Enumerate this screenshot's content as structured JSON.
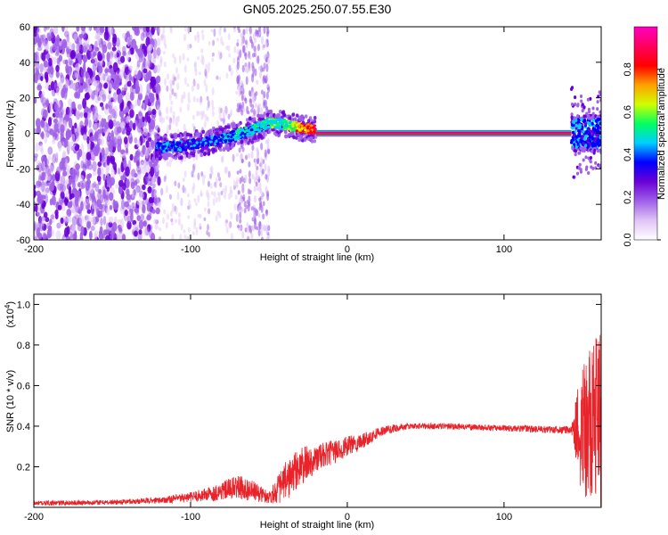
{
  "title": "GN05.2025.250.07.55.E30",
  "chart_data": [
    {
      "type": "heatmap",
      "name": "spectrogram",
      "xlabel": "Height of straight line (km)",
      "ylabel": "Frequency (Hz)",
      "xlim": [
        -200,
        162
      ],
      "ylim": [
        -60,
        60
      ],
      "xticks": [
        -200,
        -100,
        0,
        100
      ],
      "yticks": [
        60,
        40,
        20,
        0,
        -20,
        -40,
        -60
      ],
      "colorbar": {
        "label": "Normalized spectral amplitude",
        "range": [
          0,
          1
        ],
        "ticks": [
          0.0,
          0.2,
          0.4,
          0.6,
          0.8
        ],
        "tick_labels": [
          "0.0",
          "0.2",
          "0.4",
          "0.6",
          "0.8"
        ],
        "colors": [
          "#ffffff",
          "#e0c4f5",
          "#a060e8",
          "#6a00d8",
          "#0000ff",
          "#00d0ff",
          "#00ff60",
          "#d0ff00",
          "#ffa000",
          "#ff0000",
          "#ff0060",
          "#ff00c0"
        ]
      },
      "features": {
        "noise_region_x": [
          -200,
          -120
        ],
        "noise_column_x": [
          -70,
          -50
        ],
        "transition_x": [
          -122,
          -20
        ],
        "stable_line_x": [
          -20,
          143
        ],
        "stable_line_freq": 0,
        "end_burst_x": [
          143,
          162
        ]
      },
      "ridge": {
        "x": [
          -122,
          -105,
          -90,
          -75,
          -60,
          -50,
          -40,
          -30,
          -20,
          -10,
          0,
          20,
          60,
          100,
          143
        ],
        "freq": [
          -8,
          -7,
          -5,
          -2,
          2,
          6,
          5,
          3,
          2,
          1,
          0,
          0,
          0,
          0,
          0
        ],
        "amplitude": [
          0.4,
          0.35,
          0.35,
          0.45,
          0.45,
          0.5,
          0.5,
          0.7,
          0.85,
          0.95,
          0.95,
          1.0,
          1.0,
          1.0,
          1.0
        ]
      }
    },
    {
      "type": "line",
      "name": "snr",
      "xlabel": "Height of straight line (km)",
      "ylabel": "SNR (10 * v/v)",
      "scale_label_base": "(x10",
      "scale_label_exp": "4",
      "scale_label_close": ")",
      "xlim": [
        -200,
        162
      ],
      "ylim": [
        0,
        1.05
      ],
      "xticks": [
        -200,
        -100,
        0,
        100
      ],
      "yticks": [
        0.2,
        0.4,
        0.6,
        0.8,
        1.0
      ],
      "ytick_labels": [
        "0.2",
        "0.4",
        "0.6",
        "0.8",
        "1.0"
      ],
      "color": "#e8232a",
      "envelope": {
        "x": [
          -200,
          -150,
          -120,
          -100,
          -85,
          -70,
          -60,
          -50,
          -40,
          -30,
          -20,
          -10,
          0,
          10,
          20,
          30,
          40,
          60,
          100,
          143,
          150,
          160
        ],
        "mean": [
          0.02,
          0.025,
          0.035,
          0.05,
          0.07,
          0.1,
          0.08,
          0.05,
          0.12,
          0.2,
          0.24,
          0.27,
          0.3,
          0.33,
          0.37,
          0.39,
          0.4,
          0.4,
          0.39,
          0.38,
          0.4,
          0.4
        ],
        "spread": [
          0.012,
          0.012,
          0.015,
          0.025,
          0.04,
          0.06,
          0.05,
          0.03,
          0.1,
          0.1,
          0.07,
          0.06,
          0.05,
          0.04,
          0.025,
          0.02,
          0.015,
          0.015,
          0.015,
          0.02,
          0.35,
          0.45
        ]
      }
    }
  ]
}
